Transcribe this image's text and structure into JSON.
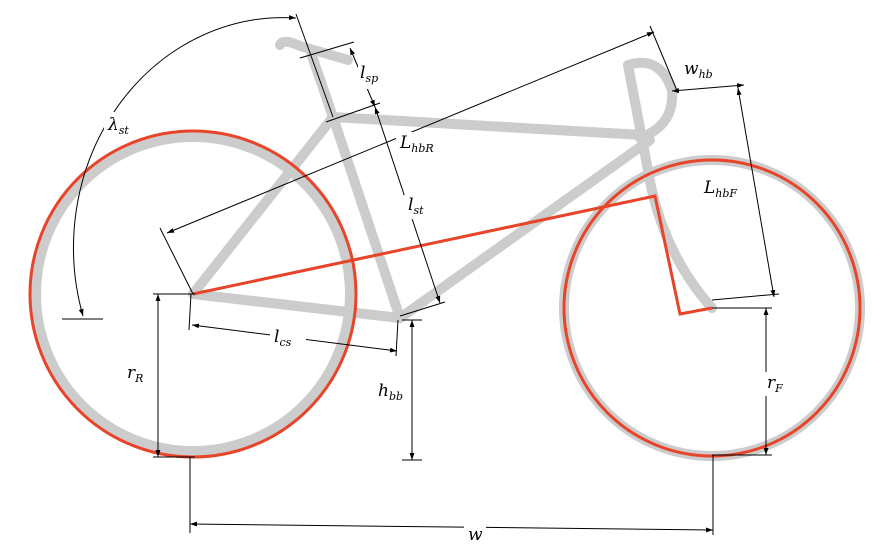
{
  "colors": {
    "frame_gray": "#cccccc",
    "model_red": "#e8442a",
    "dimension_black": "#000000",
    "background": "#ffffff"
  },
  "labels": {
    "lambda_st": {
      "main": "λ",
      "sub": "st"
    },
    "l_sp": {
      "main": "l",
      "sub": "sp"
    },
    "w_hb": {
      "main": "w",
      "sub": "hb"
    },
    "L_hbR": {
      "main": "L",
      "sub": "hbR"
    },
    "L_hbF": {
      "main": "L",
      "sub": "hbF"
    },
    "l_st": {
      "main": "l",
      "sub": "st"
    },
    "l_cs": {
      "main": "l",
      "sub": "cs"
    },
    "r_R": {
      "main": "r",
      "sub": "R"
    },
    "h_bb": {
      "main": "h",
      "sub": "bb"
    },
    "r_F": {
      "main": "r",
      "sub": "F"
    },
    "w": {
      "main": "w",
      "sub": ""
    }
  }
}
